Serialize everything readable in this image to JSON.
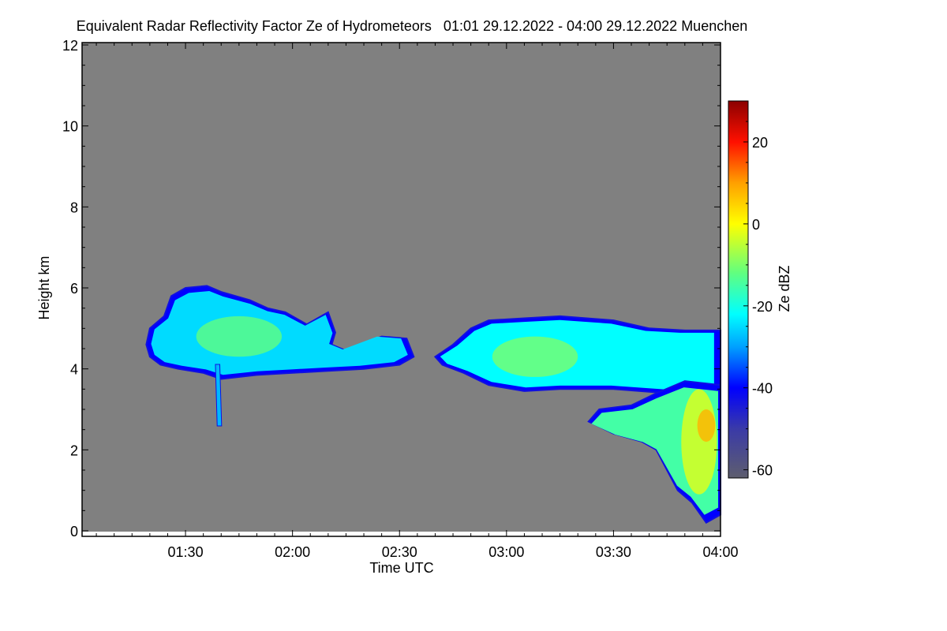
{
  "chart_data": {
    "type": "heatmap",
    "title": "Equivalent Radar Reflectivity Factor Ze of Hydrometeors   01:01 29.12.2022 - 04:00 29.12.2022 Muenchen",
    "xlabel": "Time UTC",
    "ylabel": "Height km",
    "xlim_minutes": [
      61,
      240
    ],
    "ylim": [
      0,
      12
    ],
    "x_ticks": [
      {
        "t": 90,
        "label": "01:30"
      },
      {
        "t": 120,
        "label": "02:00"
      },
      {
        "t": 150,
        "label": "02:30"
      },
      {
        "t": 180,
        "label": "03:00"
      },
      {
        "t": 210,
        "label": "03:30"
      },
      {
        "t": 240,
        "label": "04:00"
      }
    ],
    "y_ticks": [
      {
        "v": 0,
        "label": "0"
      },
      {
        "v": 2,
        "label": "2"
      },
      {
        "v": 4,
        "label": "4"
      },
      {
        "v": 6,
        "label": "6"
      },
      {
        "v": 8,
        "label": "8"
      },
      {
        "v": 10,
        "label": "10"
      },
      {
        "v": 12,
        "label": "12"
      }
    ],
    "background_color": "#808080",
    "colorbar": {
      "label": "Ze dBZ",
      "range": [
        -62,
        30
      ],
      "ticks": [
        {
          "v": -60,
          "label": "-60"
        },
        {
          "v": -40,
          "label": "-40"
        },
        {
          "v": -20,
          "label": "-20"
        },
        {
          "v": 0,
          "label": "0"
        },
        {
          "v": 20,
          "label": "20"
        }
      ],
      "stops": [
        {
          "v": -62,
          "color": "#5e5e6e"
        },
        {
          "v": -50,
          "color": "#3a3aa8"
        },
        {
          "v": -40,
          "color": "#0000ff"
        },
        {
          "v": -30,
          "color": "#00a0ff"
        },
        {
          "v": -22,
          "color": "#00ffff"
        },
        {
          "v": -12,
          "color": "#60ff80"
        },
        {
          "v": 0,
          "color": "#ffff00"
        },
        {
          "v": 10,
          "color": "#ffa000"
        },
        {
          "v": 20,
          "color": "#ff1000"
        },
        {
          "v": 30,
          "color": "#8b0000"
        }
      ]
    },
    "echo_regions": [
      {
        "name": "upper-cloud-1",
        "dbz": -25,
        "outline": [
          [
            79,
            4.6
          ],
          [
            80,
            5.0
          ],
          [
            84,
            5.3
          ],
          [
            86,
            5.8
          ],
          [
            90,
            6.0
          ],
          [
            96,
            6.05
          ],
          [
            100,
            5.9
          ],
          [
            108,
            5.7
          ],
          [
            113,
            5.5
          ],
          [
            118,
            5.4
          ],
          [
            124,
            5.1
          ],
          [
            130,
            5.4
          ],
          [
            132,
            4.9
          ],
          [
            131,
            4.6
          ],
          [
            135,
            4.45
          ],
          [
            145,
            4.8
          ],
          [
            152,
            4.75
          ],
          [
            154,
            4.3
          ],
          [
            150,
            4.1
          ],
          [
            140,
            4.0
          ],
          [
            130,
            3.95
          ],
          [
            120,
            3.9
          ],
          [
            110,
            3.85
          ],
          [
            100,
            3.75
          ],
          [
            95,
            3.9
          ],
          [
            88,
            4.0
          ],
          [
            83,
            4.1
          ],
          [
            80,
            4.3
          ]
        ]
      },
      {
        "name": "fallstreak",
        "dbz": -28,
        "outline": [
          [
            98.5,
            4.1
          ],
          [
            99.5,
            4.1
          ],
          [
            100,
            2.6
          ],
          [
            99,
            2.6
          ]
        ]
      },
      {
        "name": "upper-cloud-2",
        "dbz": -22,
        "outline": [
          [
            160,
            4.3
          ],
          [
            165,
            4.6
          ],
          [
            170,
            5.0
          ],
          [
            175,
            5.2
          ],
          [
            185,
            5.25
          ],
          [
            195,
            5.3
          ],
          [
            210,
            5.2
          ],
          [
            220,
            5.0
          ],
          [
            230,
            4.95
          ],
          [
            240,
            4.95
          ],
          [
            240,
            3.4
          ],
          [
            225,
            3.4
          ],
          [
            210,
            3.5
          ],
          [
            195,
            3.5
          ],
          [
            185,
            3.45
          ],
          [
            175,
            3.6
          ],
          [
            168,
            3.9
          ],
          [
            162,
            4.1
          ]
        ]
      },
      {
        "name": "lower-precip",
        "dbz": -15,
        "outline": [
          [
            203,
            2.7
          ],
          [
            206,
            3.0
          ],
          [
            215,
            3.1
          ],
          [
            222,
            3.4
          ],
          [
            230,
            3.7
          ],
          [
            240,
            3.6
          ],
          [
            240,
            0.4
          ],
          [
            236,
            0.2
          ],
          [
            232,
            0.7
          ],
          [
            228,
            1.0
          ],
          [
            225,
            1.5
          ],
          [
            222,
            2.0
          ],
          [
            218,
            2.2
          ],
          [
            210,
            2.4
          ]
        ]
      }
    ],
    "cores": [
      {
        "name": "cloud-1-core",
        "t": 105,
        "h": 4.8,
        "rt": 12,
        "rh": 0.5,
        "dbz": -12
      },
      {
        "name": "cloud-2-core",
        "t": 188,
        "h": 4.3,
        "rt": 12,
        "rh": 0.5,
        "dbz": -10
      },
      {
        "name": "precip-core",
        "t": 234,
        "h": 2.2,
        "rt": 5,
        "rh": 1.3,
        "dbz": -2
      },
      {
        "name": "precip-max",
        "t": 236,
        "h": 2.6,
        "rt": 2.5,
        "rh": 0.4,
        "dbz": 8
      }
    ]
  }
}
